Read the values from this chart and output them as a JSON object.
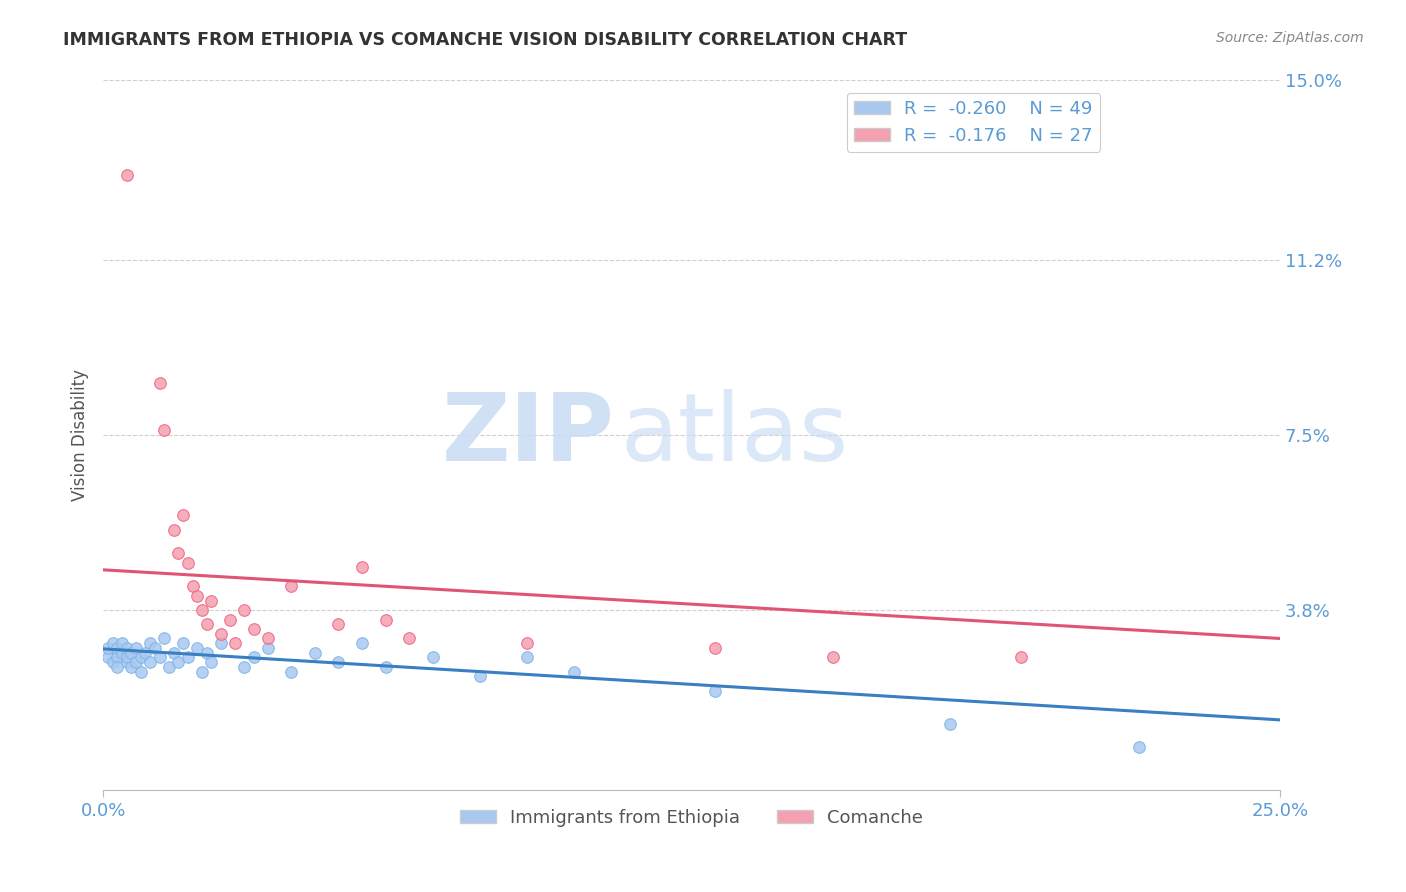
{
  "title": "IMMIGRANTS FROM ETHIOPIA VS COMANCHE VISION DISABILITY CORRELATION CHART",
  "source": "Source: ZipAtlas.com",
  "xlabel": "",
  "ylabel": "Vision Disability",
  "watermark_zip": "ZIP",
  "watermark_atlas": "atlas",
  "xmin": 0.0,
  "xmax": 0.25,
  "ymin": 0.0,
  "ymax": 0.15,
  "ytick_vals": [
    0.038,
    0.075,
    0.112,
    0.15
  ],
  "ytick_labels": [
    "3.8%",
    "7.5%",
    "11.2%",
    "15.0%"
  ],
  "xticks": [
    0.0,
    0.25
  ],
  "xtick_labels": [
    "0.0%",
    "25.0%"
  ],
  "legend1_label": "R =  -0.260    N = 49",
  "legend2_label": "R =  -0.176    N = 27",
  "legend_bottom_label1": "Immigrants from Ethiopia",
  "legend_bottom_label2": "Comanche",
  "blue_color": "#A8C8F0",
  "pink_color": "#F4A0B0",
  "blue_scatter_edge": "#7EB3E8",
  "pink_scatter_edge": "#F06080",
  "blue_line_color": "#3A7FC1",
  "pink_line_color": "#E05575",
  "title_color": "#333333",
  "axis_label_color": "#555555",
  "tick_label_color": "#5B9BD5",
  "grid_color": "#BBBBBB",
  "blue_scatter": [
    [
      0.001,
      0.028
    ],
    [
      0.001,
      0.03
    ],
    [
      0.002,
      0.027
    ],
    [
      0.002,
      0.031
    ],
    [
      0.003,
      0.028
    ],
    [
      0.003,
      0.03
    ],
    [
      0.003,
      0.026
    ],
    [
      0.004,
      0.029
    ],
    [
      0.004,
      0.031
    ],
    [
      0.005,
      0.027
    ],
    [
      0.005,
      0.03
    ],
    [
      0.005,
      0.028
    ],
    [
      0.006,
      0.026
    ],
    [
      0.006,
      0.029
    ],
    [
      0.007,
      0.03
    ],
    [
      0.007,
      0.027
    ],
    [
      0.008,
      0.028
    ],
    [
      0.008,
      0.025
    ],
    [
      0.009,
      0.029
    ],
    [
      0.01,
      0.031
    ],
    [
      0.01,
      0.027
    ],
    [
      0.011,
      0.03
    ],
    [
      0.012,
      0.028
    ],
    [
      0.013,
      0.032
    ],
    [
      0.014,
      0.026
    ],
    [
      0.015,
      0.029
    ],
    [
      0.016,
      0.027
    ],
    [
      0.017,
      0.031
    ],
    [
      0.018,
      0.028
    ],
    [
      0.02,
      0.03
    ],
    [
      0.021,
      0.025
    ],
    [
      0.022,
      0.029
    ],
    [
      0.023,
      0.027
    ],
    [
      0.025,
      0.031
    ],
    [
      0.03,
      0.026
    ],
    [
      0.032,
      0.028
    ],
    [
      0.035,
      0.03
    ],
    [
      0.04,
      0.025
    ],
    [
      0.045,
      0.029
    ],
    [
      0.05,
      0.027
    ],
    [
      0.055,
      0.031
    ],
    [
      0.06,
      0.026
    ],
    [
      0.07,
      0.028
    ],
    [
      0.08,
      0.024
    ],
    [
      0.09,
      0.028
    ],
    [
      0.1,
      0.025
    ],
    [
      0.13,
      0.021
    ],
    [
      0.18,
      0.014
    ],
    [
      0.22,
      0.009
    ]
  ],
  "pink_scatter": [
    [
      0.005,
      0.13
    ],
    [
      0.012,
      0.086
    ],
    [
      0.013,
      0.076
    ],
    [
      0.015,
      0.055
    ],
    [
      0.016,
      0.05
    ],
    [
      0.017,
      0.058
    ],
    [
      0.018,
      0.048
    ],
    [
      0.019,
      0.043
    ],
    [
      0.02,
      0.041
    ],
    [
      0.021,
      0.038
    ],
    [
      0.022,
      0.035
    ],
    [
      0.023,
      0.04
    ],
    [
      0.025,
      0.033
    ],
    [
      0.027,
      0.036
    ],
    [
      0.028,
      0.031
    ],
    [
      0.03,
      0.038
    ],
    [
      0.032,
      0.034
    ],
    [
      0.035,
      0.032
    ],
    [
      0.04,
      0.043
    ],
    [
      0.05,
      0.035
    ],
    [
      0.055,
      0.047
    ],
    [
      0.06,
      0.036
    ],
    [
      0.065,
      0.032
    ],
    [
      0.09,
      0.031
    ],
    [
      0.13,
      0.03
    ],
    [
      0.155,
      0.028
    ],
    [
      0.195,
      0.028
    ]
  ],
  "blue_trendline": [
    [
      0.0,
      0.0298
    ],
    [
      0.25,
      0.0148
    ]
  ],
  "pink_trendline": [
    [
      0.0,
      0.0465
    ],
    [
      0.25,
      0.032
    ]
  ]
}
